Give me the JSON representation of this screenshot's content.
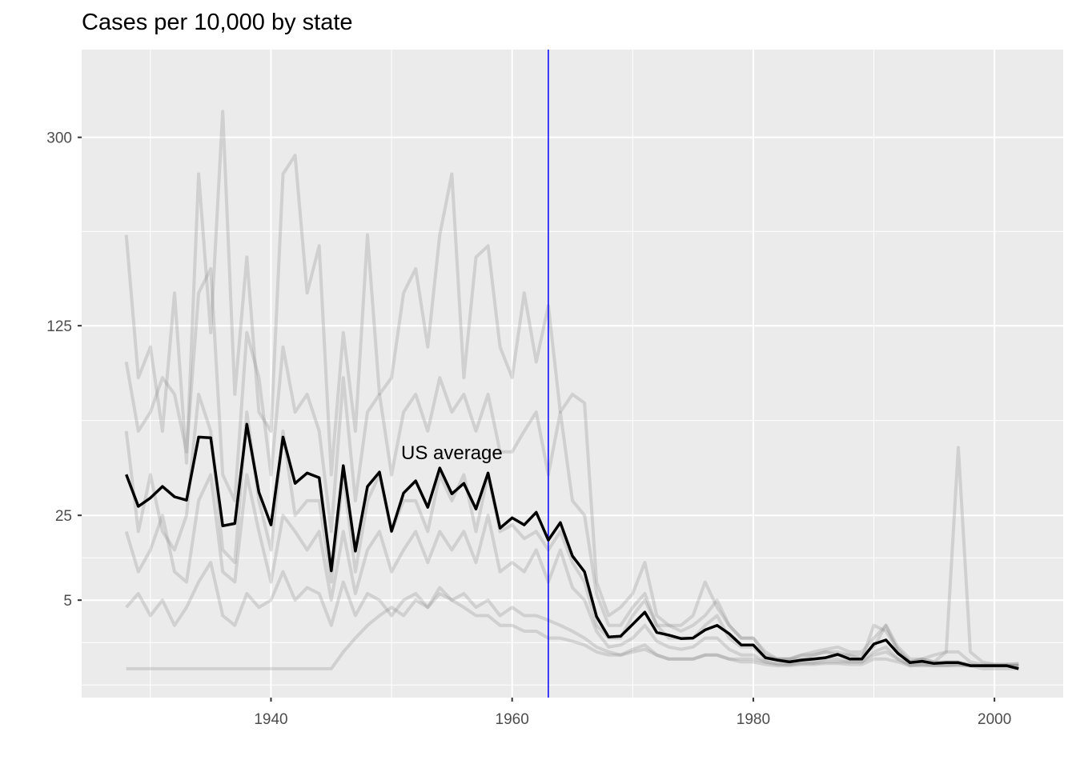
{
  "chart_data": {
    "type": "line",
    "title": "Cases per 10,000 by state",
    "xlabel": "",
    "ylabel": "",
    "y_scale": "sqrt",
    "xlim": [
      1924.3,
      2005.7
    ],
    "ylim": [
      0,
      407
    ],
    "x_ticks": [
      1940,
      1960,
      1980,
      2000
    ],
    "y_ticks": [
      5,
      25,
      125,
      300
    ],
    "grid": true,
    "legend": "none",
    "years_start": 1928,
    "years_end": 2002,
    "vline": {
      "x": 1963,
      "color": "#0000ff"
    },
    "annotation": {
      "text": "US average",
      "x": 1955,
      "y": 49.5
    },
    "colors": {
      "states": "#808080",
      "average": "#000000",
      "panel": "#ebebeb",
      "grid": "#ffffff"
    },
    "average": {
      "name": "US average",
      "values": [
        40.1,
        28,
        31,
        35.3,
        31.4,
        30.2,
        57,
        56.7,
        21.7,
        22.4,
        63.5,
        33.1,
        22,
        57,
        36.5,
        40.7,
        38.8,
        10.2,
        43.8,
        14.7,
        35.3,
        41.1,
        20.1,
        32.8,
        37.5,
        27.7,
        42.8,
        32.5,
        36.5,
        27.1,
        40.7,
        21,
        24.2,
        22,
        26,
        17.6,
        22.7,
        13.5,
        10,
        2.9,
        1.07,
        1.13,
        2.1,
        3.4,
        1.4,
        1.2,
        0.97,
        1.0,
        1.6,
        2.0,
        1.3,
        0.6,
        0.6,
        0.13,
        0.08,
        0.05,
        0.08,
        0.1,
        0.13,
        0.22,
        0.1,
        0.1,
        0.65,
        0.88,
        0.25,
        0.04,
        0.06,
        0.03,
        0.04,
        0.04,
        0.01,
        0.01,
        0.01,
        0.01,
        0.0
      ]
    },
    "states": [
      {
        "values": [
          200,
          90,
          110,
          60,
          150,
          45,
          260,
          120,
          330,
          80,
          180,
          70,
          60,
          260,
          280,
          150,
          190,
          40,
          120,
          60,
          200,
          80,
          90,
          150,
          170,
          110,
          200,
          260,
          90,
          180,
          190,
          110,
          90,
          150,
          100,
          140,
          70,
          80,
          75,
          8,
          3,
          4,
          6,
          12,
          3,
          2,
          2,
          3,
          8,
          4,
          2,
          1,
          1,
          0.2,
          0.1,
          0.1,
          0.2,
          0.3,
          0.4,
          0.5,
          0.3,
          0.3,
          1,
          2,
          0.5,
          0.1,
          0.1,
          0.2,
          0.3,
          0.3,
          0.05,
          0.02,
          0.02,
          0.02,
          0.03
        ]
      },
      {
        "values": [
          100,
          60,
          70,
          90,
          80,
          50,
          150,
          170,
          40,
          30,
          120,
          90,
          40,
          110,
          70,
          80,
          60,
          20,
          90,
          30,
          70,
          80,
          40,
          70,
          80,
          60,
          90,
          70,
          80,
          60,
          80,
          50,
          50,
          60,
          70,
          40,
          70,
          30,
          25,
          6,
          2,
          2,
          4,
          6,
          2,
          2,
          1.5,
          2,
          3,
          5,
          2,
          1,
          1,
          0.3,
          0.1,
          0.1,
          0.1,
          0.2,
          0.3,
          0.2,
          0.2,
          0.1,
          2,
          1.5,
          0.4,
          0.05,
          0.1,
          0.05,
          0.05,
          0.05,
          0.02,
          0.01,
          0.01,
          0.01,
          0.01
        ]
      },
      {
        "values": [
          60,
          20,
          40,
          20,
          15,
          25,
          80,
          60,
          15,
          12,
          70,
          30,
          15,
          60,
          25,
          30,
          30,
          8,
          40,
          10,
          30,
          40,
          20,
          30,
          30,
          20,
          40,
          30,
          40,
          20,
          40,
          20,
          22,
          18,
          20,
          15,
          20,
          12,
          8,
          2,
          1,
          1,
          3,
          5,
          2,
          1,
          1,
          1,
          2,
          3,
          1,
          0.5,
          0.5,
          0.1,
          0.1,
          0.1,
          0.2,
          0.2,
          0.3,
          0.3,
          0.2,
          0.2,
          0.5,
          2,
          0.3,
          0.05,
          0.1,
          0.05,
          0.3,
          52,
          0.3,
          0.05,
          0.02,
          0.02,
          0.02
        ]
      },
      {
        "values": [
          20,
          10,
          15,
          25,
          10,
          8,
          30,
          40,
          10,
          8,
          40,
          20,
          8,
          25,
          20,
          15,
          20,
          5,
          20,
          6,
          15,
          20,
          10,
          15,
          20,
          12,
          20,
          15,
          20,
          12,
          25,
          10,
          12,
          10,
          15,
          8,
          15,
          7,
          5,
          1.5,
          0.5,
          0.6,
          1,
          2,
          0.8,
          0.5,
          0.4,
          0.5,
          1,
          1,
          0.4,
          0.2,
          0.2,
          0.05,
          0.03,
          0.02,
          0.05,
          0.05,
          0.1,
          0.1,
          0.05,
          0.05,
          0.3,
          0.5,
          0.1,
          0.01,
          0.02,
          0.01,
          0.01,
          0.02,
          0.01,
          0.01,
          0.01,
          0.01,
          0.01
        ]
      },
      {
        "values": [
          4,
          6,
          3,
          5,
          2,
          4,
          8,
          12,
          3,
          2,
          6,
          4,
          5,
          10,
          5,
          7,
          6,
          2,
          8,
          3,
          6,
          5,
          3,
          5,
          6,
          4,
          7,
          5,
          6,
          4,
          5,
          3,
          4,
          3,
          3,
          2.5,
          2,
          1.5,
          1,
          0.5,
          0.3,
          0.2,
          0.4,
          0.6,
          0.2,
          0.1,
          0.1,
          0.1,
          0.2,
          0.2,
          0.1,
          0.05,
          0.05,
          0.02,
          0.01,
          0.01,
          0.02,
          0.02,
          0.03,
          0.03,
          0.02,
          0.02,
          0.1,
          0.1,
          0.05,
          0.01,
          0.01,
          0.01,
          0.01,
          0.01,
          0.01,
          0,
          0,
          0,
          0
        ]
      },
      {
        "values": [
          0,
          0,
          0,
          0,
          0,
          0,
          0,
          0,
          0,
          0,
          0,
          0,
          0,
          0,
          0,
          0,
          0,
          0,
          0.3,
          1,
          2,
          3,
          4,
          3,
          5,
          4,
          6,
          5,
          4,
          3,
          3,
          2,
          2,
          1.5,
          1.5,
          1,
          1,
          0.8,
          0.6,
          0.3,
          0.2,
          0.2,
          0.3,
          0.4,
          0.2,
          0.1,
          0.1,
          0.1,
          0.2,
          0.2,
          0.1,
          0.1,
          0.1,
          0.05,
          0.02,
          0.02,
          0.03,
          0.03,
          0.05,
          0.05,
          0.05,
          0.05,
          0.2,
          0.3,
          0.1,
          0.02,
          0.02,
          0.02,
          0.02,
          0.02,
          0.01,
          0.01,
          0.01,
          0.01,
          0.01
        ]
      }
    ]
  }
}
